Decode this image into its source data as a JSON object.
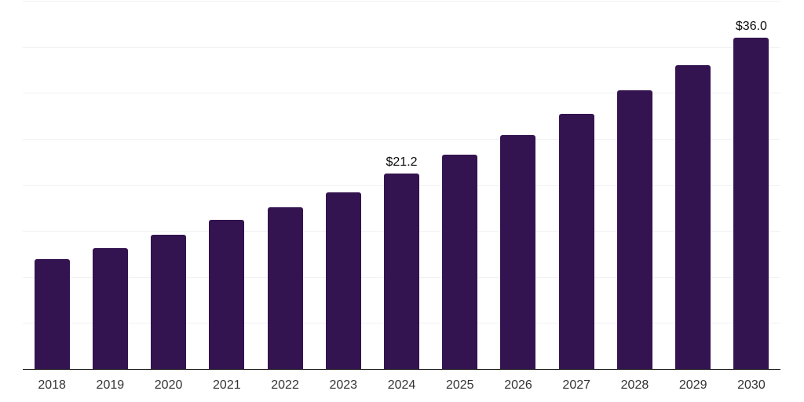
{
  "chart_data": {
    "type": "bar",
    "title": "",
    "xlabel": "",
    "ylabel": "",
    "categories": [
      "2018",
      "2019",
      "2020",
      "2021",
      "2022",
      "2023",
      "2024",
      "2025",
      "2026",
      "2027",
      "2028",
      "2029",
      "2030"
    ],
    "values": [
      11.9,
      13.1,
      14.6,
      16.2,
      17.6,
      19.2,
      21.2,
      23.3,
      25.4,
      27.7,
      30.3,
      33.0,
      36.0
    ],
    "data_labels": {
      "2024": "$21.2",
      "2030": "$36.0"
    },
    "ylim": [
      0,
      40
    ],
    "gridline_interval": 5,
    "grid": true,
    "legend": false,
    "y_axis_labels_visible": false,
    "colors": {
      "bar": "#341450",
      "gridline": "#f2f2f5",
      "axis_line": "#1f1f1f",
      "tick_label": "#333333",
      "data_label": "#0a0a0a",
      "background": "#ffffff"
    }
  }
}
